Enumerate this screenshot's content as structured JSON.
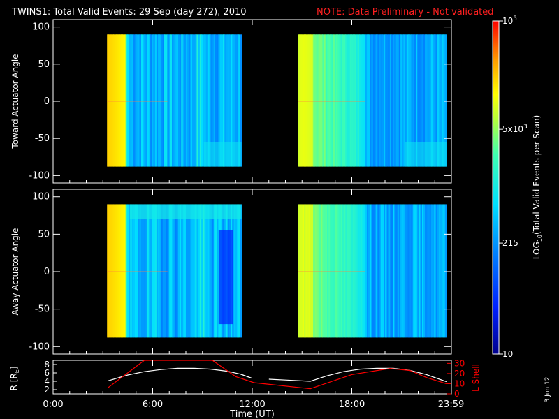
{
  "header": {
    "title": "TWINS1: Total Valid Events: 29 Sep (day 272), 2010",
    "note": "NOTE: Data Preliminary - Not validated"
  },
  "colors": {
    "background": "#000000",
    "axes": "#ffffff",
    "note": "#ff2020",
    "lshell": "#ff0000",
    "radius": "#ffffff"
  },
  "chart_data": [
    {
      "type": "heatmap",
      "panel": "toward",
      "ylabel": "Toward Actuator Angle",
      "xlim": [
        0,
        24
      ],
      "ylim": [
        -110,
        110
      ],
      "y_ticks": [
        "100",
        "50",
        "0",
        "-50",
        "-100"
      ],
      "data_blocks": [
        {
          "t_start": 3.25,
          "t_end": 11.35,
          "angle_min": -88,
          "angle_max": 90
        },
        {
          "t_start": 14.75,
          "t_end": 23.7,
          "angle_min": -88,
          "angle_max": 90
        }
      ]
    },
    {
      "type": "heatmap",
      "panel": "away",
      "ylabel": "Away Actuator Angle",
      "xlim": [
        0,
        24
      ],
      "ylim": [
        -110,
        110
      ],
      "y_ticks": [
        "100",
        "50",
        "0",
        "-50",
        "-100"
      ],
      "data_blocks": [
        {
          "t_start": 3.25,
          "t_end": 11.35,
          "angle_min": -88,
          "angle_max": 90
        },
        {
          "t_start": 14.75,
          "t_end": 23.7,
          "angle_min": -88,
          "angle_max": 90
        }
      ]
    },
    {
      "type": "line",
      "panel": "orbit",
      "xlabel": "Time (UT)",
      "x_ticks": [
        "0:00",
        "6:00",
        "12:00",
        "18:00",
        "23:59"
      ],
      "ylabel_left": "R [RE]",
      "ylabel_left_main": "R [R",
      "ylabel_left_sub": "E",
      "ylabel_left_end": "]",
      "ylabel_right": "L Shell",
      "yleft_ticks": [
        "8",
        "6",
        "4",
        "2"
      ],
      "yright_ticks": [
        "30",
        "20",
        "10",
        "0"
      ],
      "yleft_lim": [
        1,
        9
      ],
      "yright_lim": [
        0,
        33
      ],
      "series": [
        {
          "name": "R",
          "x": [
            3.3,
            4.5,
            5.5,
            6.5,
            7.5,
            8.5,
            9.5,
            10.5,
            11.3,
            12.0,
            13.0,
            14.0,
            15.5,
            16.5,
            17.5,
            18.5,
            19.5,
            20.5,
            21.5,
            22.5,
            23.7
          ],
          "values": [
            4.1,
            5.5,
            6.3,
            6.8,
            7.1,
            7.1,
            6.9,
            6.4,
            5.7,
            4.7,
            4.5,
            4.3,
            4.0,
            5.3,
            6.3,
            6.9,
            7.1,
            7.1,
            6.6,
            5.6,
            3.9
          ]
        },
        {
          "name": "L Shell",
          "x": [
            3.3,
            5.5,
            9.6,
            11.0,
            12.1,
            15.5,
            18.0,
            20.3,
            21.5,
            22.5,
            23.7
          ],
          "values": [
            6,
            35,
            35,
            17,
            11,
            5,
            19,
            25,
            23,
            16,
            10
          ]
        }
      ]
    }
  ],
  "colorbar": {
    "label": "LOG10(Total Valid Events per Scan)",
    "label_main": "LOG",
    "label_sub": "10",
    "label_rest": "(Total Valid Events per Scan)",
    "scale": "log",
    "range": [
      10,
      100000
    ],
    "ticks": [
      {
        "value": 100000,
        "mantissa": "",
        "base": "10",
        "exp": "5"
      },
      {
        "value": 5000,
        "mantissa": "5x",
        "base": "10",
        "exp": "3"
      },
      {
        "value": 215,
        "mantissa": "215",
        "base": "",
        "exp": ""
      },
      {
        "value": 10,
        "mantissa": "10",
        "base": "",
        "exp": ""
      }
    ]
  },
  "footer": {
    "date_stamp": "3 Jun 12"
  }
}
